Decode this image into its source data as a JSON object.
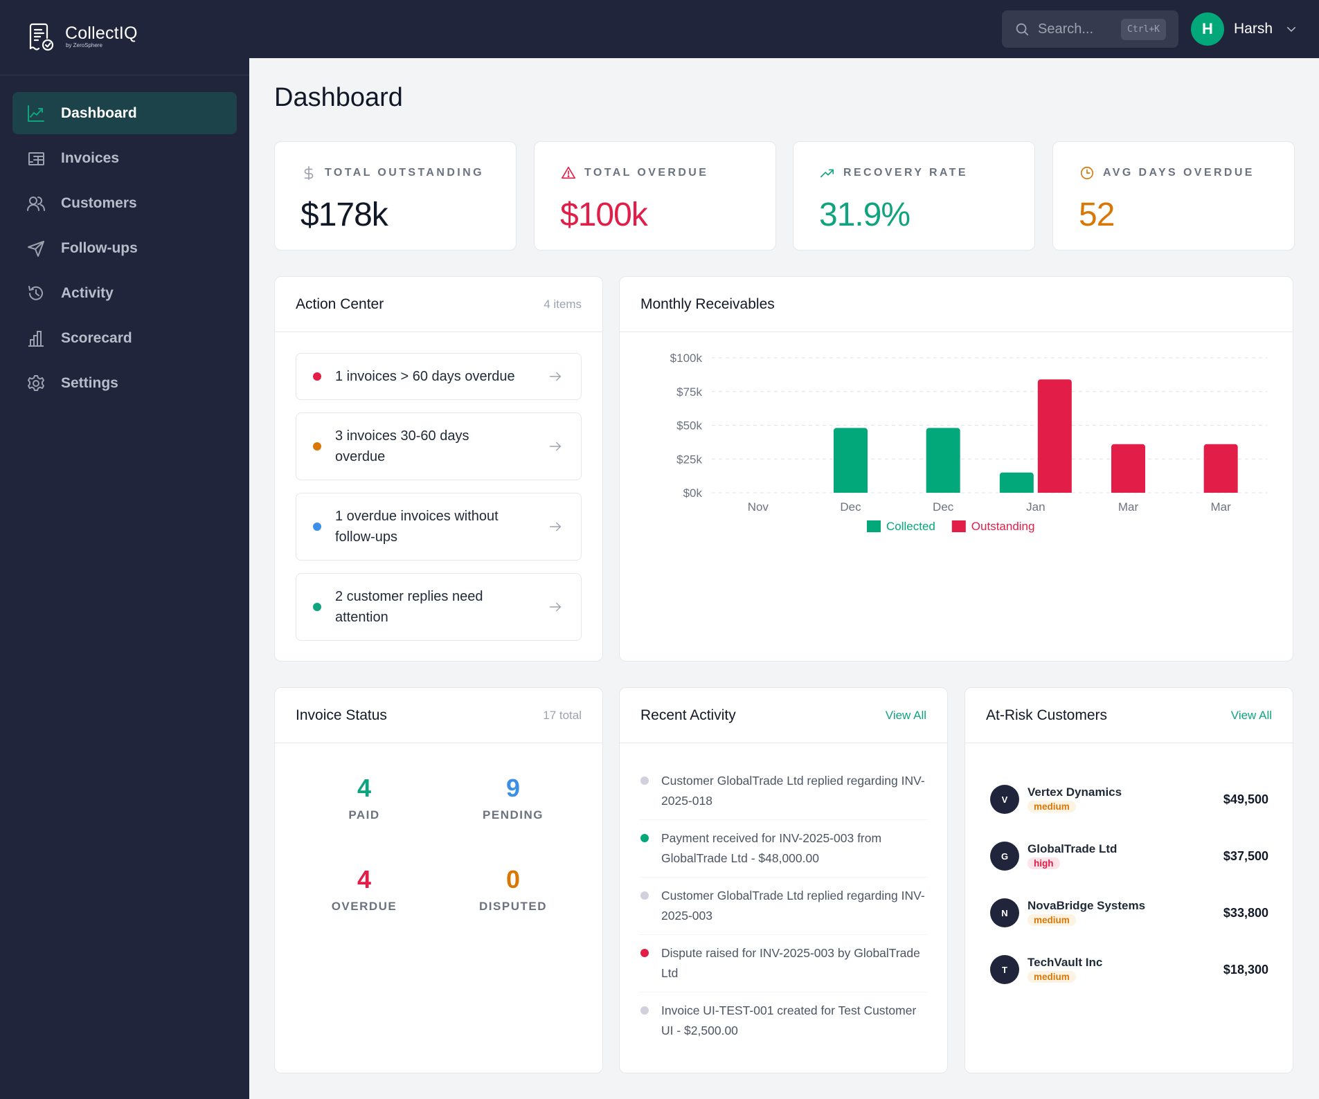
{
  "app": {
    "name": "CollectIQ",
    "subtitle": "by ZeroSphere"
  },
  "header": {
    "search_placeholder": "Search...",
    "search_shortcut": "Ctrl+K",
    "user_initial": "H",
    "user_name": "Harsh"
  },
  "sidebar": {
    "items": [
      {
        "label": "Dashboard",
        "icon": "chart-line-icon",
        "active": true
      },
      {
        "label": "Invoices",
        "icon": "invoice-icon"
      },
      {
        "label": "Customers",
        "icon": "users-icon"
      },
      {
        "label": "Follow-ups",
        "icon": "send-icon"
      },
      {
        "label": "Activity",
        "icon": "history-icon"
      },
      {
        "label": "Scorecard",
        "icon": "bar-chart-icon"
      },
      {
        "label": "Settings",
        "icon": "gear-icon"
      }
    ]
  },
  "page": {
    "title": "Dashboard"
  },
  "stats": [
    {
      "label": "TOTAL OUTSTANDING",
      "value": "$178k",
      "icon": "dollar-icon",
      "color": "#111827"
    },
    {
      "label": "TOTAL OVERDUE",
      "value": "$100k",
      "icon": "warning-icon",
      "color": "#e11d48"
    },
    {
      "label": "RECOVERY RATE",
      "value": "31.9%",
      "icon": "trending-up-icon",
      "color": "#10a37f"
    },
    {
      "label": "AVG DAYS OVERDUE",
      "value": "52",
      "icon": "clock-icon",
      "color": "#d97706"
    }
  ],
  "action_center": {
    "title": "Action Center",
    "count": "4 items",
    "items": [
      {
        "text": "1 invoices > 60 days overdue",
        "color": "#e11d48"
      },
      {
        "text": "3 invoices 30-60 days overdue",
        "color": "#d97706"
      },
      {
        "text": "1 overdue invoices without follow-ups",
        "color": "#3b8fe6"
      },
      {
        "text": "2 customer replies need attention",
        "color": "#10a37f"
      }
    ]
  },
  "monthly_receivables": {
    "title": "Monthly Receivables"
  },
  "chart_data": {
    "type": "bar",
    "title": "Monthly Receivables",
    "xlabel": "",
    "ylabel": "",
    "categories": [
      "Nov",
      "Dec",
      "Dec",
      "Jan",
      "Mar",
      "Mar"
    ],
    "series": [
      {
        "name": "Collected",
        "color": "#03a87a",
        "values": [
          0,
          48000,
          48000,
          15000,
          0,
          0
        ]
      },
      {
        "name": "Outstanding",
        "color": "#e11d48",
        "values": [
          0,
          0,
          0,
          84000,
          36000,
          36000
        ]
      }
    ],
    "y_ticks": [
      "$0k",
      "$25k",
      "$50k",
      "$75k",
      "$100k"
    ],
    "ylim": [
      0,
      100000
    ],
    "grid": true,
    "legend_position": "bottom"
  },
  "invoice_status": {
    "title": "Invoice Status",
    "total": "17 total",
    "items": [
      {
        "label": "PAID",
        "value": "4",
        "color": "#10a37f"
      },
      {
        "label": "PENDING",
        "value": "9",
        "color": "#3b8fe6"
      },
      {
        "label": "OVERDUE",
        "value": "4",
        "color": "#e11d48"
      },
      {
        "label": "DISPUTED",
        "value": "0",
        "color": "#d97706"
      }
    ]
  },
  "recent_activity": {
    "title": "Recent Activity",
    "link": "View All",
    "items": [
      {
        "text": "Customer GlobalTrade Ltd replied regarding INV-2025-018",
        "color": "#d1d0dc"
      },
      {
        "text": "Payment received for INV-2025-003 from GlobalTrade Ltd - $48,000.00",
        "color": "#03a87a"
      },
      {
        "text": "Customer GlobalTrade Ltd replied regarding INV-2025-003",
        "color": "#d1d0dc"
      },
      {
        "text": "Dispute raised for INV-2025-003 by GlobalTrade Ltd",
        "color": "#e11d48"
      },
      {
        "text": "Invoice UI-TEST-001 created for Test Customer UI - $2,500.00",
        "color": "#d1d0dc"
      }
    ]
  },
  "at_risk": {
    "title": "At-Risk Customers",
    "link": "View All",
    "items": [
      {
        "initial": "V",
        "name": "Vertex Dynamics",
        "risk": "medium",
        "amount": "$49,500"
      },
      {
        "initial": "G",
        "name": "GlobalTrade Ltd",
        "risk": "high",
        "amount": "$37,500"
      },
      {
        "initial": "N",
        "name": "NovaBridge Systems",
        "risk": "medium",
        "amount": "$33,800"
      },
      {
        "initial": "T",
        "name": "TechVault Inc",
        "risk": "medium",
        "amount": "$18,300"
      }
    ]
  }
}
